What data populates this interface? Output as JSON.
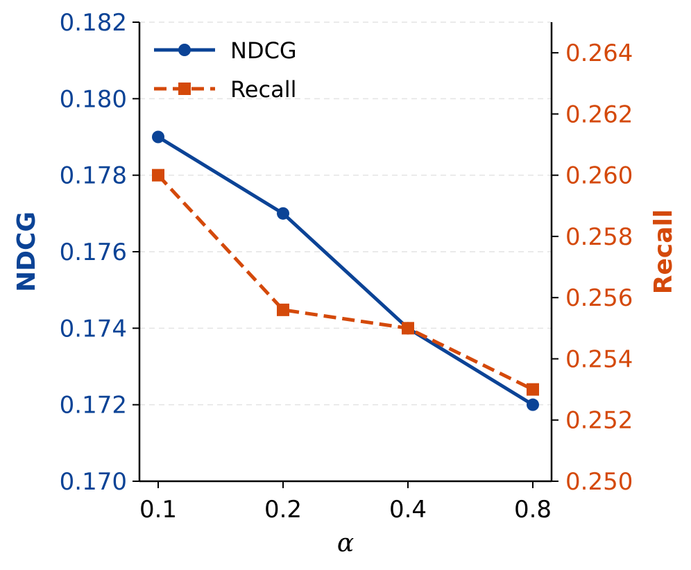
{
  "chart_data": {
    "type": "line",
    "categories": [
      "0.1",
      "0.2",
      "0.4",
      "0.8"
    ],
    "xlabel": "α",
    "series": [
      {
        "name": "NDCG",
        "axis": "left",
        "values": [
          0.179,
          0.177,
          0.174,
          0.172
        ],
        "color": "#0b4396",
        "line_style": "solid",
        "marker": "circle"
      },
      {
        "name": "Recall",
        "axis": "right",
        "values": [
          0.26,
          0.2556,
          0.255,
          0.253
        ],
        "color": "#d4490a",
        "line_style": "dashed",
        "marker": "square"
      }
    ],
    "y_left": {
      "label": "NDCG",
      "ylim": [
        0.17,
        0.182
      ],
      "ticks": [
        "0.170",
        "0.172",
        "0.174",
        "0.176",
        "0.178",
        "0.180",
        "0.182"
      ],
      "color": "#0b4396"
    },
    "y_right": {
      "label": "Recall",
      "ylim": [
        0.25,
        0.265
      ],
      "ticks": [
        "0.250",
        "0.252",
        "0.254",
        "0.256",
        "0.258",
        "0.260",
        "0.262",
        "0.264"
      ],
      "color": "#d4490a"
    },
    "grid": "horizontal-dashed",
    "legend_position": "top-left"
  }
}
